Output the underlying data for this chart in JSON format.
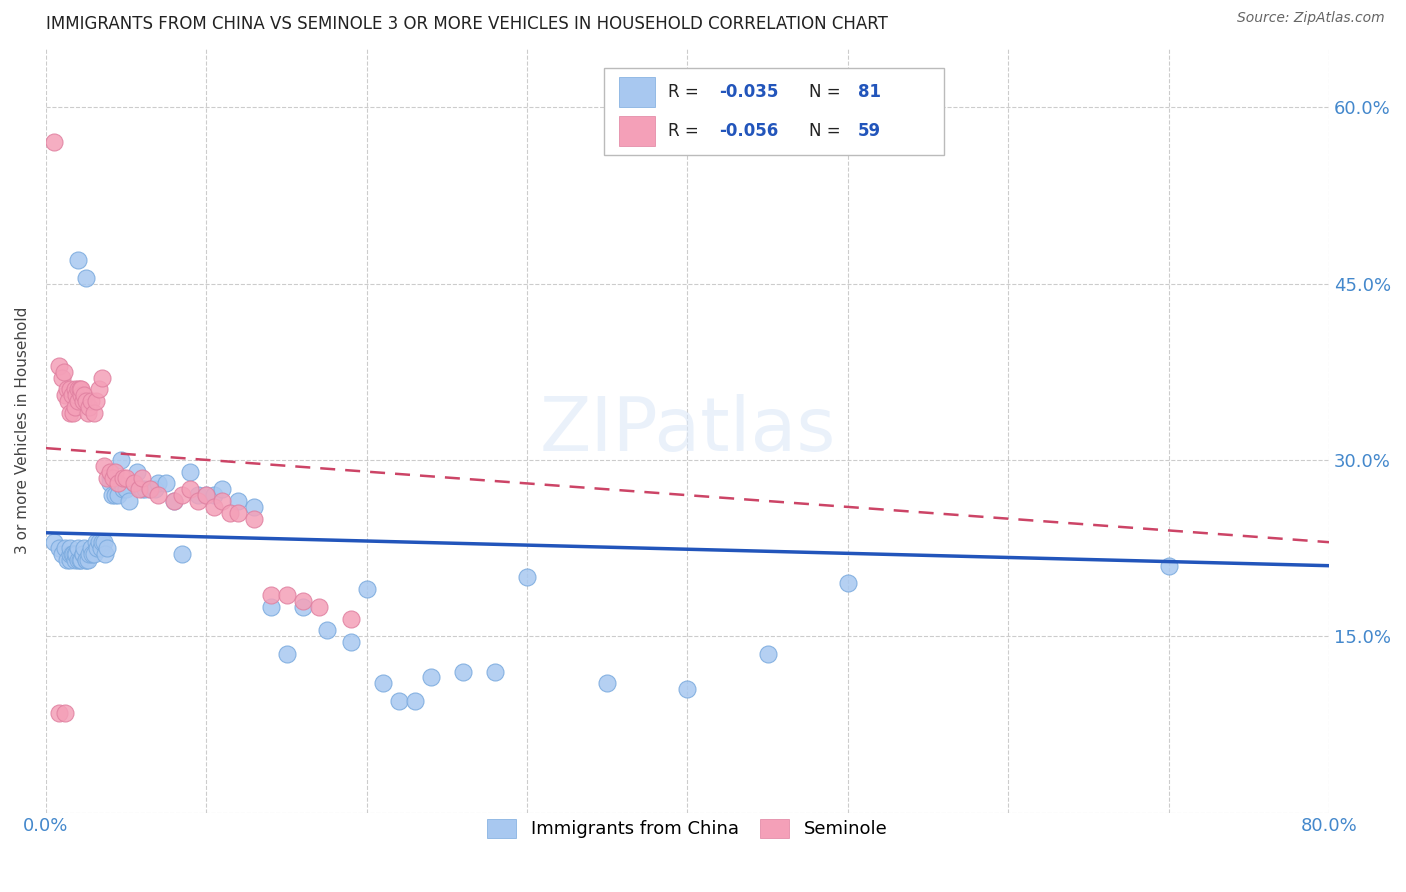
{
  "title": "IMMIGRANTS FROM CHINA VS SEMINOLE 3 OR MORE VEHICLES IN HOUSEHOLD CORRELATION CHART",
  "source": "Source: ZipAtlas.com",
  "ylabel": "3 or more Vehicles in Household",
  "xmin": 0.0,
  "xmax": 0.8,
  "ymin": 0.0,
  "ymax": 0.65,
  "color_blue": "#a8c8f0",
  "color_pink": "#f4a0b8",
  "color_line_blue": "#2255bb",
  "color_line_pink": "#cc4466",
  "legend_label1": "Immigrants from China",
  "legend_label2": "Seminole",
  "axis_color": "#4488cc",
  "blue_scatter_x": [
    0.005,
    0.008,
    0.01,
    0.012,
    0.013,
    0.015,
    0.015,
    0.015,
    0.016,
    0.017,
    0.018,
    0.018,
    0.019,
    0.02,
    0.02,
    0.021,
    0.022,
    0.023,
    0.023,
    0.024,
    0.025,
    0.025,
    0.026,
    0.027,
    0.028,
    0.029,
    0.03,
    0.031,
    0.032,
    0.033,
    0.034,
    0.035,
    0.036,
    0.037,
    0.038,
    0.04,
    0.04,
    0.041,
    0.043,
    0.044,
    0.045,
    0.047,
    0.048,
    0.05,
    0.052,
    0.055,
    0.057,
    0.06,
    0.062,
    0.065,
    0.068,
    0.07,
    0.075,
    0.08,
    0.085,
    0.09,
    0.095,
    0.1,
    0.105,
    0.11,
    0.12,
    0.13,
    0.14,
    0.15,
    0.16,
    0.175,
    0.19,
    0.2,
    0.21,
    0.22,
    0.23,
    0.24,
    0.26,
    0.28,
    0.3,
    0.35,
    0.4,
    0.45,
    0.5,
    0.7,
    0.02,
    0.025
  ],
  "blue_scatter_y": [
    0.23,
    0.225,
    0.22,
    0.225,
    0.215,
    0.215,
    0.22,
    0.225,
    0.22,
    0.22,
    0.215,
    0.22,
    0.22,
    0.215,
    0.225,
    0.215,
    0.215,
    0.22,
    0.22,
    0.225,
    0.215,
    0.215,
    0.215,
    0.22,
    0.225,
    0.22,
    0.22,
    0.23,
    0.225,
    0.23,
    0.225,
    0.23,
    0.23,
    0.22,
    0.225,
    0.285,
    0.28,
    0.27,
    0.27,
    0.28,
    0.27,
    0.3,
    0.275,
    0.275,
    0.265,
    0.28,
    0.29,
    0.275,
    0.275,
    0.275,
    0.275,
    0.28,
    0.28,
    0.265,
    0.22,
    0.29,
    0.27,
    0.27,
    0.27,
    0.275,
    0.265,
    0.26,
    0.175,
    0.135,
    0.175,
    0.155,
    0.145,
    0.19,
    0.11,
    0.095,
    0.095,
    0.115,
    0.12,
    0.12,
    0.2,
    0.11,
    0.105,
    0.135,
    0.195,
    0.21,
    0.47,
    0.455
  ],
  "pink_scatter_x": [
    0.005,
    0.008,
    0.01,
    0.011,
    0.012,
    0.013,
    0.014,
    0.015,
    0.015,
    0.016,
    0.017,
    0.018,
    0.018,
    0.019,
    0.02,
    0.02,
    0.021,
    0.022,
    0.022,
    0.023,
    0.024,
    0.025,
    0.026,
    0.027,
    0.028,
    0.03,
    0.031,
    0.033,
    0.035,
    0.036,
    0.038,
    0.04,
    0.042,
    0.043,
    0.045,
    0.048,
    0.05,
    0.055,
    0.058,
    0.06,
    0.065,
    0.07,
    0.08,
    0.085,
    0.09,
    0.095,
    0.1,
    0.105,
    0.11,
    0.115,
    0.12,
    0.13,
    0.14,
    0.15,
    0.16,
    0.17,
    0.19,
    0.008,
    0.012
  ],
  "pink_scatter_y": [
    0.57,
    0.38,
    0.37,
    0.375,
    0.355,
    0.36,
    0.35,
    0.34,
    0.36,
    0.355,
    0.34,
    0.345,
    0.36,
    0.355,
    0.35,
    0.36,
    0.36,
    0.355,
    0.36,
    0.35,
    0.355,
    0.35,
    0.34,
    0.345,
    0.35,
    0.34,
    0.35,
    0.36,
    0.37,
    0.295,
    0.285,
    0.29,
    0.285,
    0.29,
    0.28,
    0.285,
    0.285,
    0.28,
    0.275,
    0.285,
    0.275,
    0.27,
    0.265,
    0.27,
    0.275,
    0.265,
    0.27,
    0.26,
    0.265,
    0.255,
    0.255,
    0.25,
    0.185,
    0.185,
    0.18,
    0.175,
    0.165,
    0.085,
    0.085
  ],
  "blue_trend_x": [
    0.0,
    0.8
  ],
  "blue_trend_y": [
    0.238,
    0.21
  ],
  "pink_trend_x": [
    0.0,
    0.8
  ],
  "pink_trend_y": [
    0.31,
    0.23
  ]
}
